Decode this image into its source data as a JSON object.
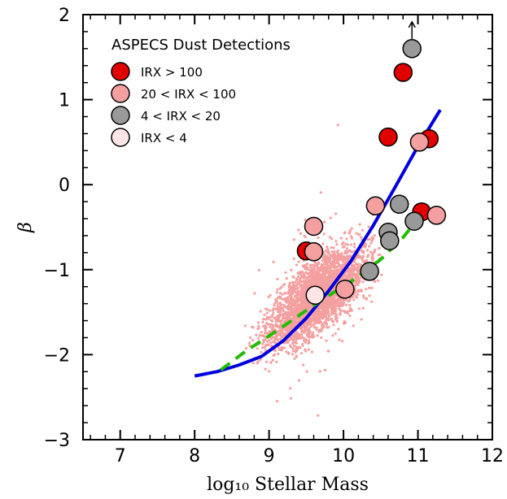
{
  "chart_data": {
    "type": "scatter",
    "xlabel": "log₁₀ Stellar Mass",
    "ylabel": "β",
    "xlim": [
      6.5,
      12
    ],
    "ylim": [
      -3,
      2
    ],
    "xticks": [
      "7",
      "8",
      "9",
      "10",
      "11",
      "12"
    ],
    "yticks": [
      "−3",
      "−2",
      "−1",
      "0",
      "1",
      "2"
    ],
    "legend": {
      "title": "ASPECS Dust Detections",
      "placement": "top-left",
      "entries": [
        {
          "label": "IRX > 100",
          "color": "#e00000"
        },
        {
          "label": "20 < IRX < 100",
          "color": "#f5a0a0"
        },
        {
          "label": "4 < IRX < 20",
          "color": "#999999"
        },
        {
          "label": "IRX < 4",
          "color": "#ffe6e6"
        }
      ]
    },
    "background_cloud": {
      "color": "#f5a0a0",
      "description_points_approx": 3000,
      "trend": {
        "x_center": [
          8.0,
          11.3
        ],
        "y_center": [
          -2.3,
          -0.3
        ],
        "scatter": 0.35
      }
    },
    "series": [
      {
        "label": "IRX > 100",
        "color": "#e00000",
        "points": [
          [
            9.5,
            -0.78
          ],
          [
            10.6,
            0.56
          ],
          [
            10.8,
            1.32
          ],
          [
            11.05,
            -0.32
          ],
          [
            11.15,
            0.54
          ]
        ]
      },
      {
        "label": "20 < IRX < 100",
        "color": "#f5a0a0",
        "points": [
          [
            9.6,
            -0.49
          ],
          [
            9.6,
            -0.79
          ],
          [
            10.02,
            -1.23
          ],
          [
            10.43,
            -0.25
          ],
          [
            11.02,
            0.5
          ],
          [
            11.25,
            -0.36
          ]
        ]
      },
      {
        "label": "4 < IRX < 20",
        "color": "#999999",
        "points": [
          [
            10.35,
            -1.02
          ],
          [
            10.6,
            -0.56
          ],
          [
            10.62,
            -0.66
          ],
          [
            10.75,
            -0.23
          ],
          [
            10.95,
            -0.43
          ],
          [
            10.92,
            1.6
          ]
        ]
      },
      {
        "label": "IRX < 4",
        "color": "#ffe6e6",
        "points": [
          [
            9.62,
            -1.3
          ]
        ]
      }
    ],
    "annotations": [
      {
        "type": "upward-arrow",
        "at": [
          10.92,
          1.6
        ],
        "color": "#000000"
      }
    ],
    "lines": [
      {
        "style": "solid",
        "color": "#0000dd",
        "x": [
          8.0,
          8.3,
          8.6,
          8.9,
          9.2,
          9.5,
          9.8,
          10.1,
          10.4,
          10.7,
          11.0,
          11.3
        ],
        "y": [
          -2.25,
          -2.2,
          -2.12,
          -2.02,
          -1.83,
          -1.57,
          -1.25,
          -0.9,
          -0.48,
          -0.02,
          0.45,
          0.88
        ]
      },
      {
        "style": "dashed",
        "color": "#22bb00",
        "x": [
          8.35,
          8.7,
          9.0,
          9.3,
          9.6,
          9.9,
          10.2,
          10.5,
          10.8,
          11.1
        ],
        "y": [
          -2.18,
          -1.95,
          -1.78,
          -1.6,
          -1.42,
          -1.25,
          -1.08,
          -0.88,
          -0.62,
          -0.3
        ]
      }
    ]
  }
}
